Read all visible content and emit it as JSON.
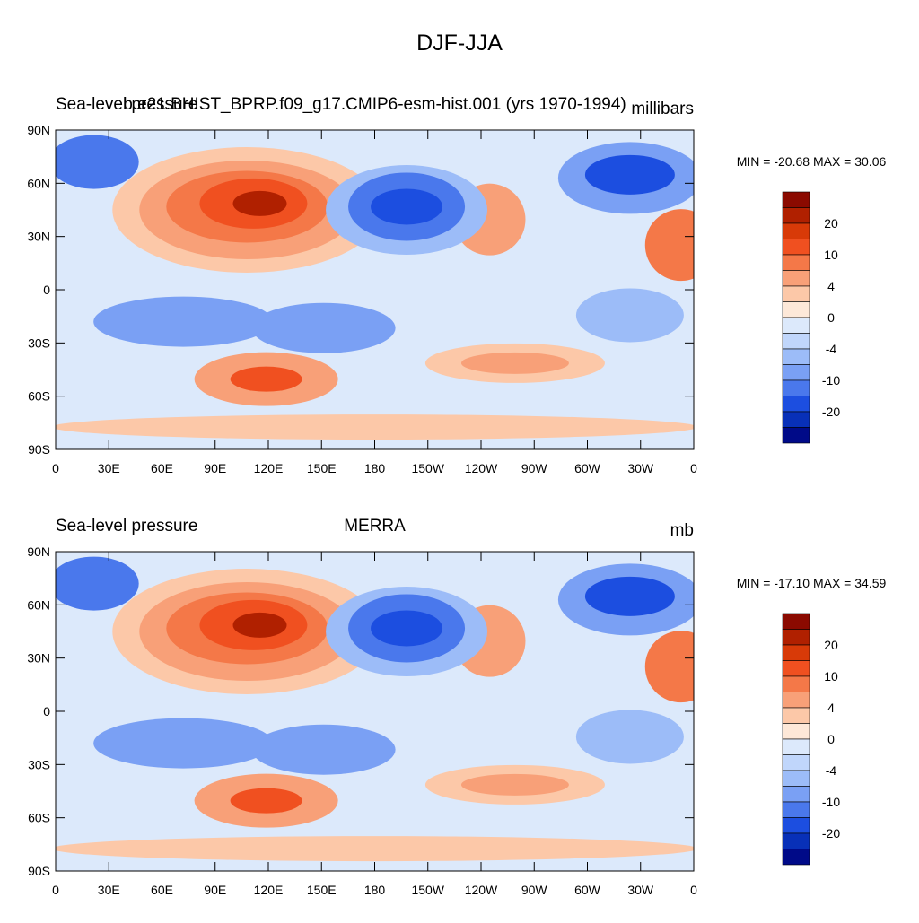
{
  "title": "DJF-JJA",
  "panels": [
    {
      "left": "Sea-level pressure",
      "center": "b.e21.BHIST_BPRP.f09_g17.CMIP6-esm-hist.001 (yrs 1970-1994)",
      "right": "millibars",
      "minmax": "MIN = -20.68 MAX =  30.06"
    },
    {
      "left": "Sea-level pressure",
      "center": "MERRA",
      "right": "mb",
      "minmax": "MIN = -17.10 MAX =  34.59"
    }
  ],
  "lat_labels": [
    "90N",
    "60N",
    "30N",
    "0",
    "30S",
    "60S",
    "90S"
  ],
  "lon_labels": [
    "0",
    "30E",
    "60E",
    "90E",
    "120E",
    "150E",
    "180",
    "150W",
    "120W",
    "90W",
    "60W",
    "30W",
    "0"
  ],
  "colorbar_labels": [
    20,
    10,
    4,
    0,
    -4,
    -10,
    -20
  ],
  "colors": [
    "#8b0a00",
    "#b02000",
    "#d83a08",
    "#f05020",
    "#f47848",
    "#f8a078",
    "#fcc8a8",
    "#fde8d8",
    "#dce9fb",
    "#c0d6fb",
    "#9cbcf8",
    "#7aa0f4",
    "#4a78ec",
    "#1c4ee0",
    "#0830b8",
    "#000a88"
  ]
}
